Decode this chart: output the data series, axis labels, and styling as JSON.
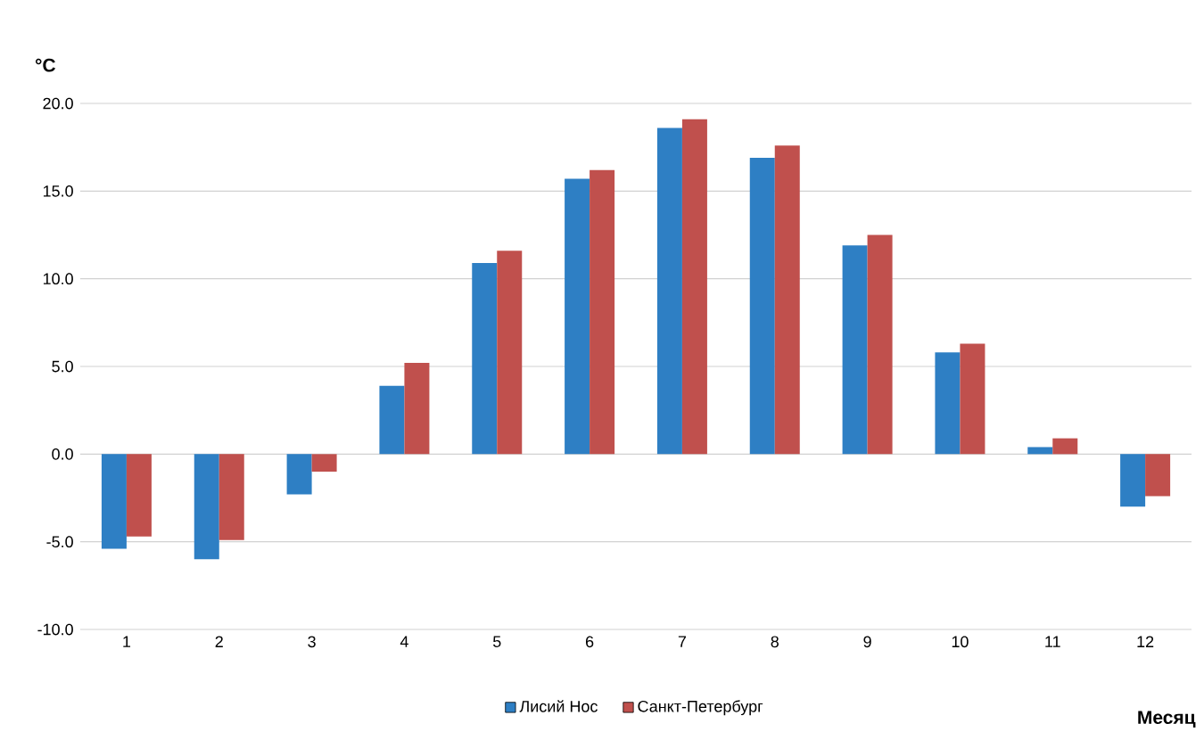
{
  "chart_data": {
    "type": "bar",
    "xlabel": "Месяц",
    "ylabel": "°C",
    "categories": [
      "1",
      "2",
      "3",
      "4",
      "5",
      "6",
      "7",
      "8",
      "9",
      "10",
      "11",
      "12"
    ],
    "series": [
      {
        "name": "Лисий Нос",
        "color": "#2e7fc4",
        "values": [
          -5.4,
          -6.0,
          -2.3,
          3.9,
          10.9,
          15.7,
          18.6,
          16.9,
          11.9,
          5.8,
          0.4,
          -3.0
        ]
      },
      {
        "name": "Санкт-Петербург",
        "color": "#c0504d",
        "values": [
          -4.7,
          -4.9,
          -1.0,
          5.2,
          11.6,
          16.2,
          19.1,
          17.6,
          12.5,
          6.3,
          0.9,
          -2.4
        ]
      }
    ],
    "ylim": [
      -10,
      20
    ],
    "yticks": [
      {
        "value": -10,
        "label": "-10.0"
      },
      {
        "value": -5,
        "label": "-5.0"
      },
      {
        "value": 0,
        "label": "0.0"
      },
      {
        "value": 5,
        "label": "5.0"
      },
      {
        "value": 10,
        "label": "10.0"
      },
      {
        "value": 15,
        "label": "15.0"
      },
      {
        "value": 20,
        "label": "20.0"
      }
    ],
    "grid": "y",
    "legend": "bottom"
  }
}
